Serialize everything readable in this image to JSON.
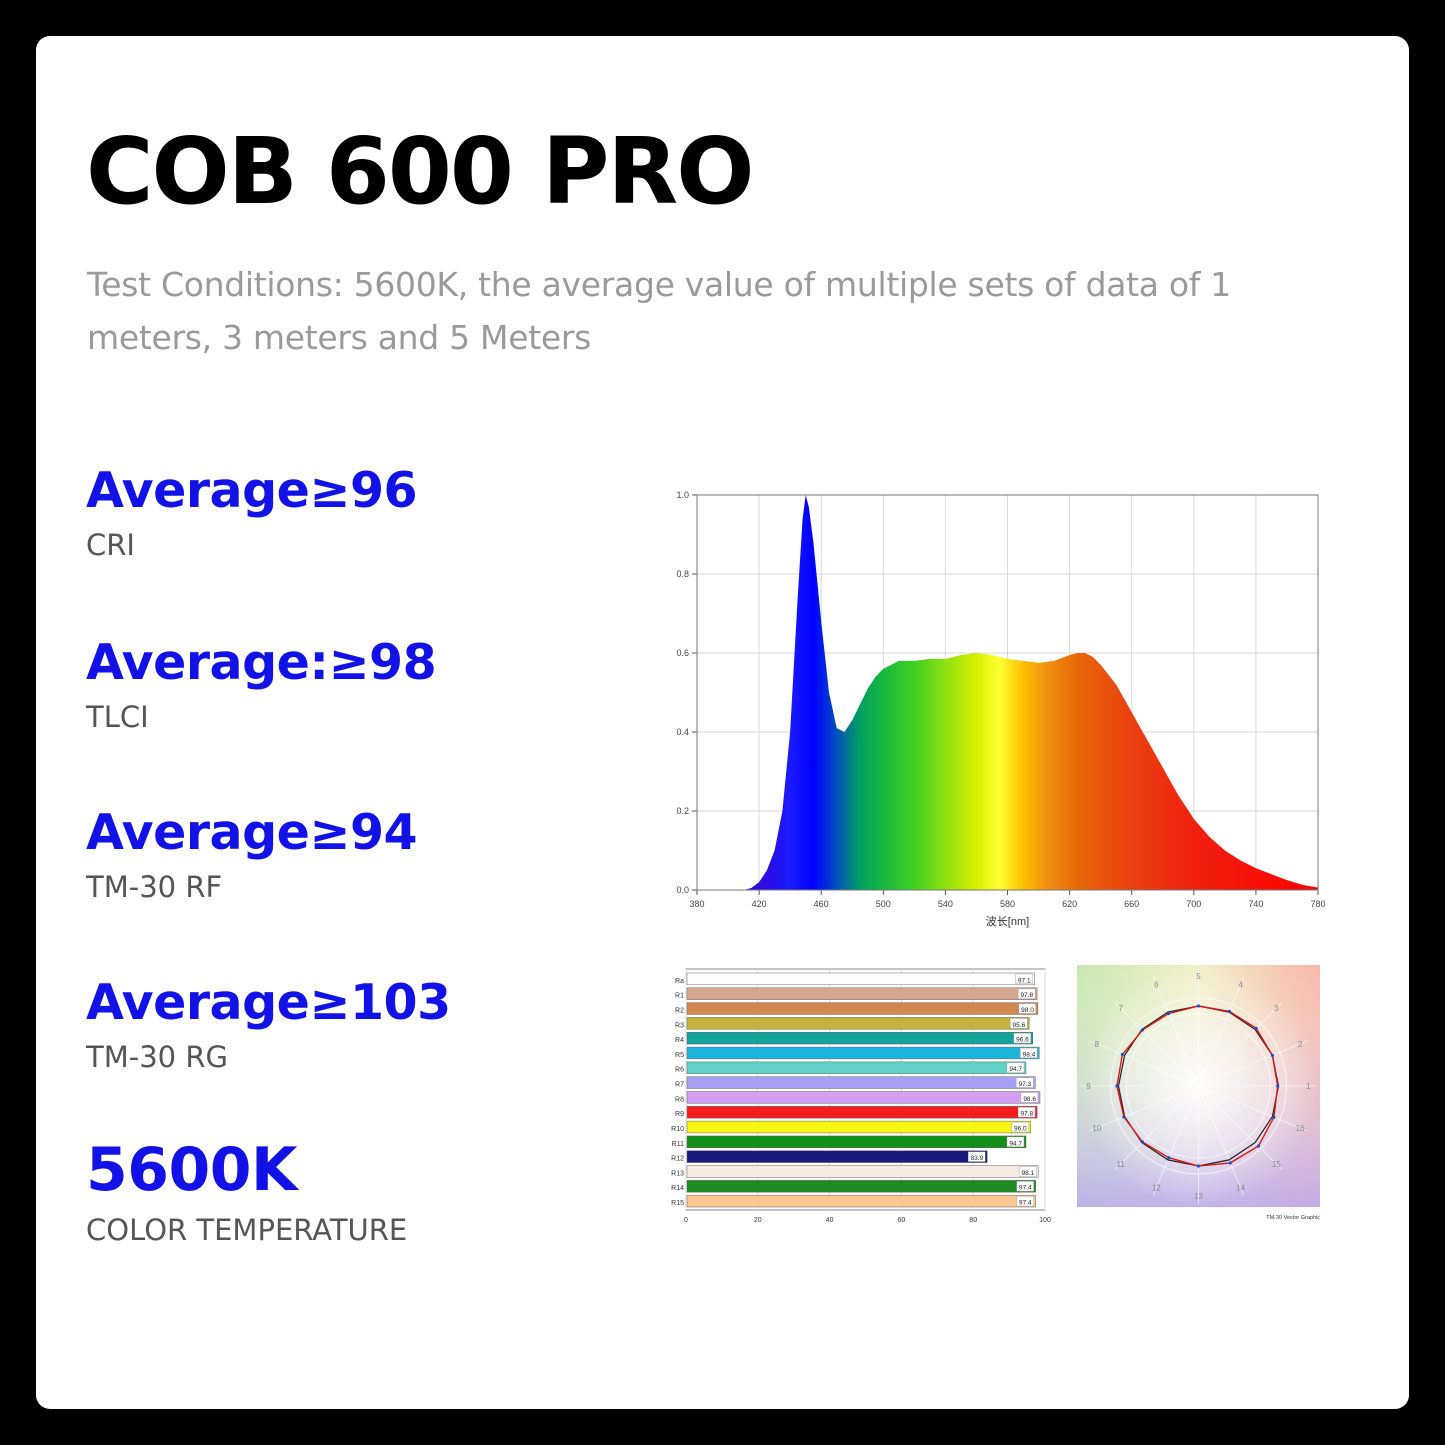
{
  "title": "COB 600 PRO",
  "subtitle": "Test Conditions: 5600K, the average value of multiple sets of data of 1 meters, 3 meters and 5 Meters",
  "stats": [
    {
      "value": "Average≥96",
      "label": "CRI"
    },
    {
      "value": "Average:≥98",
      "label": "TLCI"
    },
    {
      "value": "Average≥94",
      "label": "TM-30 RF"
    },
    {
      "value": "Average≥103",
      "label": "TM-30 RG"
    },
    {
      "value": "5600K",
      "label": "COLOR TEMPERATURE"
    }
  ],
  "chart_data": [
    {
      "type": "area",
      "xlabel": "波长[nm]",
      "ylabel": "",
      "xlim": [
        380,
        780
      ],
      "ylim": [
        0,
        1.0
      ],
      "xticks": [
        380,
        420,
        460,
        500,
        540,
        580,
        620,
        660,
        700,
        740,
        780
      ],
      "yticks": [
        "0.0",
        "0.2",
        "0.4",
        "0.6",
        "0.8",
        "1.0"
      ],
      "grid": true,
      "x": [
        410,
        415,
        420,
        425,
        430,
        435,
        440,
        445,
        448,
        450,
        452,
        455,
        460,
        465,
        470,
        475,
        480,
        485,
        490,
        495,
        500,
        505,
        510,
        520,
        530,
        540,
        545,
        550,
        560,
        570,
        580,
        590,
        600,
        610,
        620,
        625,
        630,
        635,
        640,
        650,
        660,
        670,
        680,
        690,
        700,
        710,
        720,
        730,
        740,
        750,
        760,
        770,
        780
      ],
      "y": [
        0,
        0.005,
        0.02,
        0.05,
        0.1,
        0.2,
        0.4,
        0.75,
        0.94,
        1.0,
        0.97,
        0.88,
        0.68,
        0.5,
        0.41,
        0.4,
        0.43,
        0.47,
        0.51,
        0.54,
        0.56,
        0.57,
        0.58,
        0.58,
        0.585,
        0.585,
        0.59,
        0.595,
        0.6,
        0.595,
        0.585,
        0.58,
        0.575,
        0.58,
        0.595,
        0.6,
        0.6,
        0.59,
        0.57,
        0.52,
        0.45,
        0.38,
        0.31,
        0.24,
        0.18,
        0.135,
        0.1,
        0.075,
        0.055,
        0.04,
        0.025,
        0.013,
        0.006
      ]
    },
    {
      "type": "bar",
      "orientation": "horizontal",
      "categories": [
        "Ra",
        "R1",
        "R2",
        "R3",
        "R4",
        "R5",
        "R6",
        "R7",
        "R8",
        "R9",
        "R10",
        "R11",
        "R12",
        "R13",
        "R14",
        "R15"
      ],
      "values": [
        97.1,
        97.8,
        98.0,
        95.6,
        96.6,
        98.4,
        94.7,
        97.3,
        98.6,
        97.8,
        96.0,
        94.7,
        83.9,
        98.1,
        97.4,
        97.4
      ],
      "value_labels": [
        "97.1",
        "97.8",
        "98.0",
        "95.6",
        "96.6",
        "98.4",
        "94.7",
        "97.3",
        "98.6",
        "97.8",
        "96.0",
        "94.7",
        "83.9",
        "98.1",
        "97.4",
        "97.4"
      ],
      "colors": [
        "#ffffff",
        "#d5a690",
        "#d2884e",
        "#c2b43e",
        "#15a29b",
        "#1cb3dd",
        "#5fd2c5",
        "#a6a1f5",
        "#d49ef2",
        "#f51c1c",
        "#f6f613",
        "#118f18",
        "#1a1a7e",
        "#f7eae4",
        "#1d8a22",
        "#fbc792"
      ],
      "xticks": [
        0,
        20,
        40,
        60,
        80,
        100
      ],
      "xlim": [
        0,
        100
      ]
    },
    {
      "type": "radar",
      "title": "TM-30 Vector Graphic",
      "categories": [
        "1",
        "2",
        "3",
        "4",
        "5",
        "6",
        "7",
        "8",
        "9",
        "10",
        "11",
        "12",
        "13",
        "14",
        "15",
        "16"
      ],
      "reference": [
        1,
        1,
        1,
        1,
        1,
        1,
        1,
        1,
        1,
        1,
        1,
        1,
        1,
        1,
        1,
        1
      ],
      "values": [
        0.99,
        1.0,
        1.02,
        1.01,
        1.0,
        0.98,
        0.99,
        1.03,
        1.02,
        1.01,
        0.99,
        0.97,
        1.0,
        1.04,
        1.06,
        1.02
      ]
    }
  ]
}
